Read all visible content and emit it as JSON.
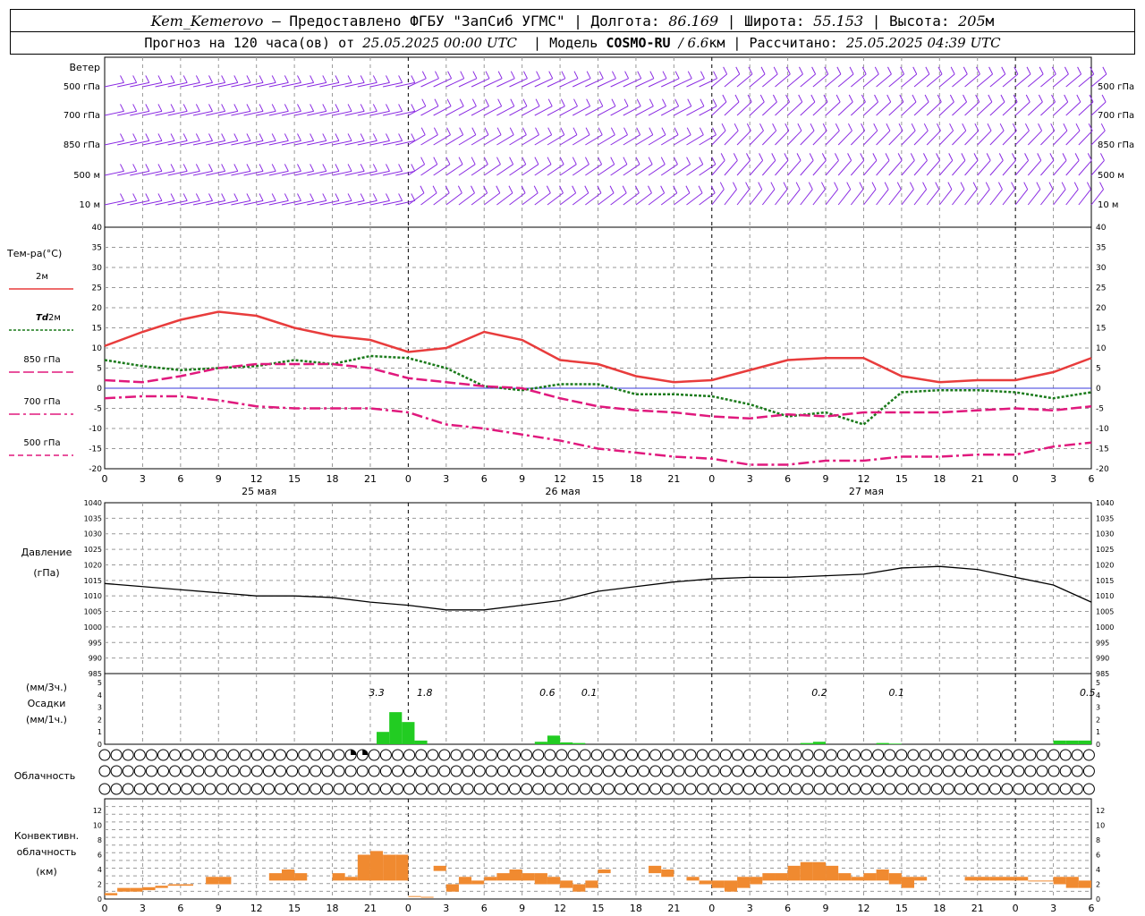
{
  "header": {
    "station": "Kem_Kemerovo",
    "provider_text": "— Предоставлено ФГБУ \"ЗапСиб УГМС\"",
    "lon_label": "Долгота:",
    "lon_value": "86.169",
    "lat_label": "Широта:",
    "lat_value": "55.153",
    "alt_label": "Высота:",
    "alt_value": "205",
    "alt_unit": "м",
    "forecast_text": "Прогноз на 120 часа(ов) от",
    "forecast_start": "25.05.2025 00:00 UTC",
    "model_label": "Модель",
    "model_name": "COSMO-RU",
    "model_res": "/ 6.6",
    "model_res_unit": "км",
    "calc_label": "Рассчитано:",
    "calc_time": "25.05.2025 04:39 UTC"
  },
  "colors": {
    "wind": "#8a2be2",
    "t2m": "#e83c3c",
    "td2m": "#1a7a1a",
    "t850": "#e0197d",
    "t700": "#e0197d",
    "t500": "#e0197d",
    "zero_line": "#3a3adc",
    "pressure": "#000000",
    "precip": "#22cc22",
    "conv": "#f08a30",
    "grid": "#999999"
  },
  "x_axis": {
    "hour_labels": [
      "0",
      "3",
      "6",
      "9",
      "12",
      "15",
      "18",
      "21",
      "0",
      "3",
      "6",
      "9",
      "12",
      "15",
      "18",
      "21",
      "0",
      "3",
      "6",
      "9",
      "12",
      "15",
      "18",
      "21",
      "0",
      "3",
      "6"
    ],
    "day_labels": [
      "25 мая",
      "26 мая",
      "27 мая"
    ]
  },
  "wind_panel": {
    "title": "Ветер",
    "levels": [
      "500 гПа",
      "700 гПа",
      "850 гПа",
      "500  м",
      "10  м"
    ],
    "right_levels": [
      "500 гПа",
      "700 гПа",
      "850 гПа",
      "500  м",
      "10  м"
    ]
  },
  "temp_panel": {
    "title": "Тем-ра(°С)",
    "legend": [
      {
        "label": "2м",
        "style": "solid"
      },
      {
        "label_pre": "Td",
        "label": "2м",
        "style": "dotted"
      },
      {
        "label": "850 гПа",
        "style": "longdash"
      },
      {
        "label": "700 гПа",
        "style": "dashdot"
      },
      {
        "label": "500 гПа",
        "style": "dash"
      }
    ],
    "ticks": [
      "40",
      "35",
      "30",
      "25",
      "20",
      "15",
      "10",
      "5",
      "0",
      "-5",
      "-10",
      "-15",
      "-20"
    ]
  },
  "pressure_panel": {
    "title": "Давление",
    "unit": "(гПа)",
    "ticks": [
      "1040",
      "1035",
      "1030",
      "1025",
      "1020",
      "1015",
      "1010",
      "1005",
      "1000",
      "995",
      "990",
      "985"
    ]
  },
  "precip_panel": {
    "unit3h": "(мм/3ч.)",
    "title": "Осадки",
    "unit1h": "(мм/1ч.)",
    "ticks": [
      "5",
      "4",
      "3",
      "2",
      "1",
      "0"
    ],
    "totals": [
      {
        "label": "3.3",
        "hour": 21.5
      },
      {
        "label": "1.8",
        "hour": 25.3
      },
      {
        "label": "0.6",
        "hour": 35
      },
      {
        "label": "0.1",
        "hour": 38.3
      },
      {
        "label": "0.2",
        "hour": 56.5
      },
      {
        "label": "0.1",
        "hour": 62.6
      },
      {
        "label": "0.5",
        "hour": 77.7
      }
    ]
  },
  "cloud_panel": {
    "title": "Облачность"
  },
  "conv_panel": {
    "title_l1": "Конвективн.",
    "title_l2": "облачность",
    "unit": "(км)",
    "ticks": [
      "12",
      "10",
      "8",
      "6",
      "4",
      "2",
      "0"
    ]
  },
  "chart_data": {
    "type": "line",
    "x_unit": "hours from 25.05.2025 00:00 UTC (local labels)",
    "temperature": {
      "ylim": [
        -20,
        40
      ],
      "series": [
        {
          "name": "2м",
          "x": [
            0,
            3,
            6,
            9,
            12,
            15,
            18,
            21,
            24,
            27,
            30,
            33,
            36,
            39,
            42,
            45,
            48,
            51,
            54,
            57,
            60,
            63,
            66,
            69,
            72,
            75,
            78
          ],
          "values": [
            10.5,
            14,
            17,
            19,
            18,
            15,
            13,
            12,
            9,
            10,
            14,
            12,
            7,
            6,
            3,
            1.5,
            2,
            4.5,
            7,
            7.5,
            7.5,
            3,
            1.5,
            2,
            2,
            4,
            7.5
          ]
        },
        {
          "name": "Td 2м",
          "x": [
            0,
            3,
            6,
            9,
            12,
            15,
            18,
            21,
            24,
            27,
            30,
            33,
            36,
            39,
            42,
            45,
            48,
            51,
            54,
            57,
            60,
            63,
            66,
            69,
            72,
            75,
            78
          ],
          "values": [
            7,
            5.5,
            4.5,
            5,
            5.5,
            7,
            6,
            8,
            7.5,
            5,
            0.5,
            -0.5,
            1,
            1,
            -1.5,
            -1.5,
            -2,
            -4,
            -7,
            -6,
            -9,
            -1,
            -0.5,
            -0.5,
            -1,
            -2.5,
            -1
          ]
        },
        {
          "name": "850 гПа",
          "x": [
            0,
            3,
            6,
            9,
            12,
            15,
            18,
            21,
            24,
            27,
            30,
            33,
            36,
            39,
            42,
            45,
            48,
            51,
            54,
            57,
            60,
            63,
            66,
            69,
            72,
            75,
            78
          ],
          "values": [
            2,
            1.5,
            3,
            5,
            6,
            6,
            6,
            5,
            2.5,
            1.5,
            0.5,
            0,
            -2.5,
            -4.5,
            -5.5,
            -6,
            -7,
            -7.5,
            -6.5,
            -7,
            -6,
            -6,
            -6,
            -5.5,
            -5,
            -5.5,
            -4.5
          ]
        },
        {
          "name": "700 гПа",
          "x": [
            0,
            3,
            6,
            9,
            12,
            15,
            18,
            21,
            24,
            27,
            30,
            33,
            36,
            39,
            42,
            45,
            48,
            51,
            54,
            57,
            60,
            63,
            66,
            69,
            72,
            75,
            78
          ],
          "values": [
            -2.5,
            -2,
            -2,
            -3,
            -4.5,
            -5,
            -5,
            -5,
            -6,
            -9,
            -10,
            -11.5,
            -13,
            -15,
            -16,
            -17,
            -17.5,
            -19,
            -19,
            -18,
            -18,
            -17,
            -17,
            -16.5,
            -16.5,
            -14.5,
            -13.5
          ]
        }
      ]
    },
    "pressure": {
      "ylim": [
        985,
        1040
      ],
      "x": [
        0,
        3,
        6,
        9,
        12,
        15,
        18,
        21,
        24,
        27,
        30,
        33,
        36,
        39,
        42,
        45,
        48,
        51,
        54,
        57,
        60,
        63,
        66,
        69,
        72,
        75,
        78
      ],
      "values": [
        1014,
        1013,
        1012,
        1011,
        1010,
        1010,
        1009.5,
        1008,
        1007,
        1005.5,
        1005.5,
        1007,
        1008.5,
        1011.5,
        1013,
        1014.5,
        1015.5,
        1016,
        1016,
        1016.5,
        1017,
        1019,
        1019.5,
        1018.5,
        1016,
        1013.5,
        1008
      ]
    },
    "precipitation": {
      "ylim": [
        0,
        5
      ],
      "x": [
        22,
        23,
        24,
        25,
        34.5,
        35.5,
        36.5,
        37.5,
        55.5,
        56.5,
        61.5,
        62.5,
        75.5,
        76.5,
        77.5
      ],
      "values": [
        1,
        2.6,
        1.8,
        0.3,
        0.2,
        0.7,
        0.15,
        0.1,
        0.1,
        0.2,
        0.1,
        0.05,
        0.3,
        0.3,
        0.3
      ]
    },
    "cloudiness": {
      "rows": 3,
      "levels_0_4": [
        "0000000000000000000003300000000000000000000000000000000000000000000000000000000000000",
        "0000000000000000000000000000000000000000000000000000000000000000000000000000000000000",
        "0000000000000000000000000000000000000000000000000000000000000000000000000000000000000"
      ]
    },
    "convective": {
      "ylim": [
        0,
        13
      ],
      "x": [
        0.5,
        1.5,
        2.5,
        3.5,
        4.5,
        5.5,
        6.5,
        8.5,
        9.5,
        13.5,
        14.5,
        15.5,
        18.5,
        19.5,
        20.5,
        21.5,
        22.5,
        23.5,
        24.5,
        25.5,
        26.5,
        27.5,
        28.5,
        29.5,
        30.5,
        31.5,
        32.5,
        33.5,
        34.5,
        35.5,
        36.5,
        37.5,
        38.5,
        39.5,
        43.5,
        44.5,
        46.5,
        47.5,
        48.5,
        49.5,
        50.5,
        51.5,
        52.5,
        53.5,
        54.5,
        55.5,
        56.5,
        57.5,
        58.5,
        59.5,
        60.5,
        61.5,
        62.5,
        63.5,
        64.5,
        68.5,
        69.5,
        70.5,
        71.5,
        72.5,
        73.5,
        74.5,
        75.5,
        76.5,
        77.5
      ],
      "base": [
        0.5,
        1,
        1,
        1.2,
        1.5,
        1.8,
        1.8,
        2,
        2,
        2.5,
        2.5,
        2.5,
        2.5,
        2.5,
        2.5,
        2.5,
        2.5,
        2.5,
        0.3,
        0.2,
        3.8,
        1,
        2,
        2,
        2.5,
        2.5,
        2.5,
        2.5,
        2,
        2,
        1.5,
        1,
        1.5,
        3.5,
        3.5,
        3,
        2.5,
        2,
        1.5,
        1,
        1.5,
        2,
        2.5,
        2.5,
        2.5,
        2.5,
        2.5,
        2.5,
        2.5,
        2.5,
        2.5,
        2.5,
        2,
        1.5,
        2.5,
        2.5,
        2.5,
        2.5,
        2.5,
        2.5,
        2.5,
        2.5,
        2,
        1.5,
        1.5
      ],
      "top": [
        0.8,
        1.5,
        1.5,
        1.6,
        1.8,
        2,
        2,
        3,
        3,
        3.5,
        4,
        3.5,
        3.5,
        3,
        6,
        6.5,
        6,
        6,
        0.4,
        0.3,
        4.5,
        2,
        3,
        2.5,
        3,
        3.5,
        4,
        3.5,
        3.5,
        3,
        2.5,
        2,
        2.5,
        4,
        4.5,
        4,
        3,
        2.5,
        2.5,
        2.5,
        3,
        3,
        3.5,
        3.5,
        4.5,
        5,
        5,
        4.5,
        3.5,
        3,
        3.5,
        4,
        3.5,
        3,
        3,
        3,
        3,
        3,
        3,
        3,
        2.5,
        2.5,
        3,
        3,
        2.5
      ]
    }
  }
}
